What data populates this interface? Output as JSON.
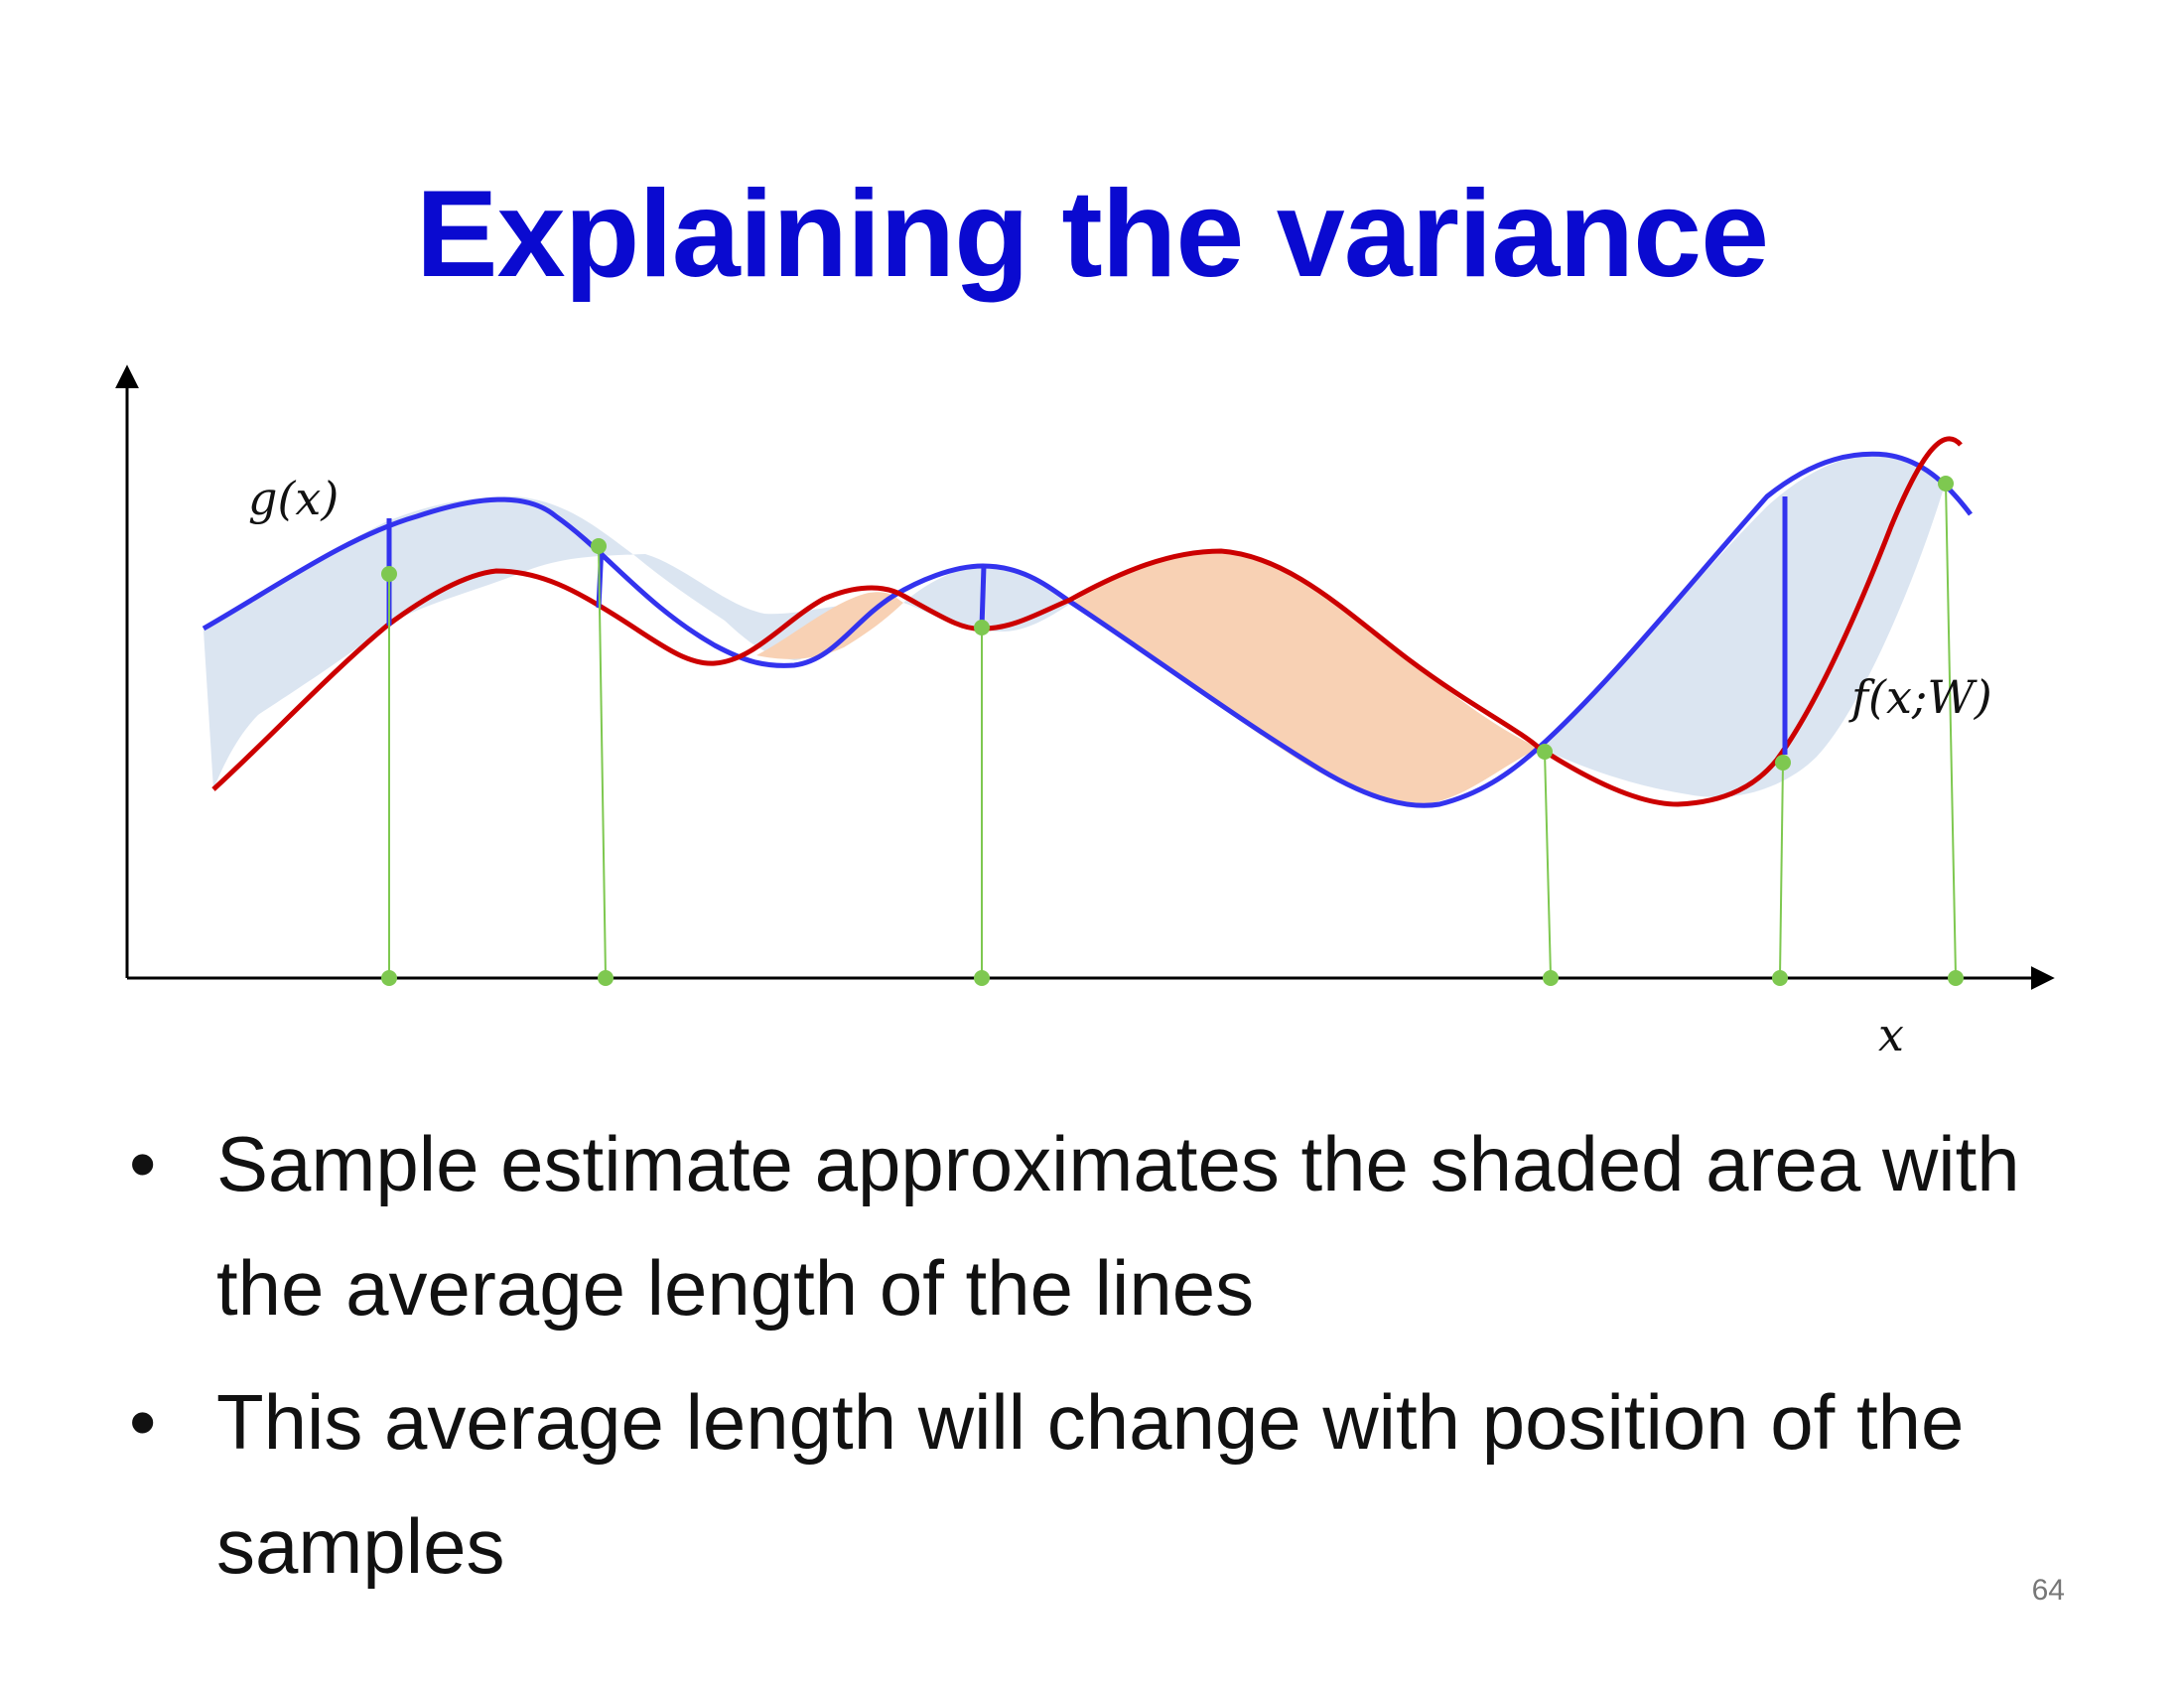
{
  "slide": {
    "title": "Explaining the variance",
    "page_number": "64"
  },
  "diagram": {
    "labels": {
      "g": "g(x)",
      "f": "f(x;W)",
      "x_axis": "x"
    },
    "colors": {
      "g_curve": "#3333ee",
      "f_curve": "#cc0000",
      "fill_g_above": "#dbe5f1",
      "fill_f_above": "#f8d1b4",
      "samples": "#7ec850",
      "axes": "#000000"
    },
    "sample_count": 6
  },
  "bullets": [
    {
      "symbol": "•",
      "text": "Sample estimate approximates the shaded area with the average length of the lines"
    },
    {
      "symbol": "•",
      "text": "This average length will change with position of the samples"
    }
  ]
}
